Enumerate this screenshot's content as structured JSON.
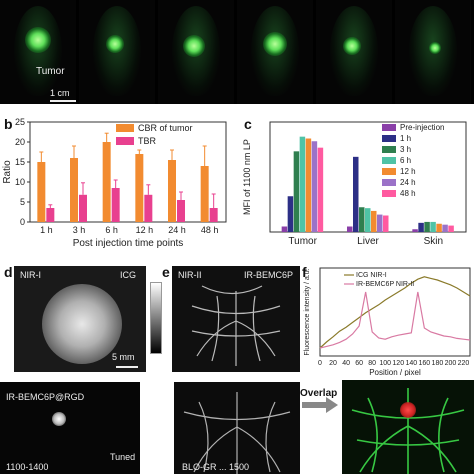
{
  "panel_a": {
    "tumor_label": "Tumor",
    "scale_bar": "1 cm",
    "tile_count": 6
  },
  "panel_labels": {
    "b": "b",
    "c": "c",
    "d": "d",
    "e": "e",
    "f": "f",
    "g": "g"
  },
  "panel_d": {
    "channel": "NIR-I",
    "probe": "ICG",
    "scale_bar": "5 mm"
  },
  "panel_e": {
    "channel": "NIR-II",
    "probe": "IR-BEMC6P"
  },
  "panel_g": {
    "probe": "IR-BEMC6P@RGD",
    "tuned_label": "Tuned",
    "bottom_left": "1100-1400",
    "bottom_mid": "BLO-GR ... 1500",
    "overlap_label": "Overlap"
  },
  "chart_data": [
    {
      "type": "bar",
      "panel": "b",
      "categories": [
        "1 h",
        "3 h",
        "6 h",
        "12 h",
        "24 h",
        "48 h"
      ],
      "series": [
        {
          "name": "CBR of tumor",
          "color": "#f28b30",
          "values": [
            15,
            16,
            20,
            17,
            15.5,
            14
          ],
          "errors": [
            2.5,
            3,
            2.2,
            1,
            2.5,
            5
          ]
        },
        {
          "name": "TBR",
          "color": "#e8408f",
          "values": [
            3.5,
            6.8,
            8.5,
            6.8,
            5.5,
            3.5
          ],
          "errors": [
            0.8,
            3,
            2,
            2.5,
            2,
            3.5
          ]
        }
      ],
      "xlabel": "Post injection time points",
      "ylabel": "Ratio",
      "ylim": [
        0,
        25
      ],
      "yticks": [
        0,
        5,
        10,
        15,
        20,
        25
      ],
      "legend": "top-right"
    },
    {
      "type": "bar",
      "panel": "c",
      "categories": [
        "Tumor",
        "Liver",
        "Skin"
      ],
      "series": [
        {
          "name": "Pre-injection",
          "color": "#8a3fa8",
          "values": [
            600,
            600,
            300
          ]
        },
        {
          "name": "1 h",
          "color": "#2c2f86",
          "values": [
            3900,
            8200,
            1000
          ]
        },
        {
          "name": "3 h",
          "color": "#2f7f4f",
          "values": [
            8800,
            2700,
            1100
          ]
        },
        {
          "name": "6 h",
          "color": "#4fc3a6",
          "values": [
            10400,
            2600,
            1100
          ]
        },
        {
          "name": "12 h",
          "color": "#f28b30",
          "values": [
            10200,
            2300,
            900
          ]
        },
        {
          "name": "24 h",
          "color": "#9b72c8",
          "values": [
            9900,
            1900,
            800
          ]
        },
        {
          "name": "48 h",
          "color": "#ff5aa0",
          "values": [
            9200,
            1800,
            700
          ]
        }
      ],
      "ylabel": "MFI of 1100 nm LP",
      "ylim": [
        0,
        12000
      ],
      "legend": "top-right"
    },
    {
      "type": "line",
      "panel": "f",
      "x": [
        0,
        10,
        20,
        30,
        40,
        50,
        60,
        70,
        80,
        90,
        100,
        110,
        120,
        130,
        140,
        150,
        160,
        170,
        180,
        190,
        200,
        210,
        220,
        230
      ],
      "series": [
        {
          "name": "ICG NIR-I",
          "color": "#8a7a2a",
          "values": [
            20,
            35,
            48,
            62,
            72,
            84,
            96,
            108,
            118,
            128,
            140,
            150,
            160,
            170,
            182,
            192,
            198,
            194,
            190,
            184,
            178,
            170,
            160,
            150
          ]
        },
        {
          "name": "IR-BEMC6P NIR-II",
          "color": "#d97aa3",
          "values": [
            20,
            24,
            28,
            34,
            42,
            55,
            75,
            160,
            60,
            45,
            42,
            48,
            52,
            55,
            58,
            160,
            70,
            60,
            55,
            50,
            48,
            44,
            42,
            40
          ]
        }
      ],
      "xlabel": "Position / pixel",
      "ylabel": "Fluorescence intensity / a.u.",
      "xticks": [
        0,
        20,
        40,
        60,
        80,
        100,
        120,
        140,
        160,
        180,
        200,
        220
      ],
      "legend": "top-left"
    }
  ]
}
